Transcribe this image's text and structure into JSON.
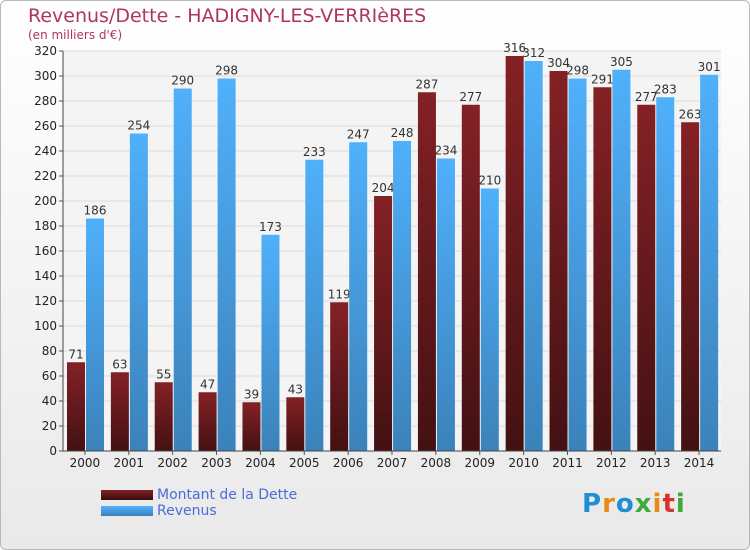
{
  "chart_data": {
    "type": "bar",
    "title": "Revenus/Dette - HADIGNY-LES-VERRIèRES",
    "subtitle": "(en milliers d'€)",
    "categories": [
      "2000",
      "2001",
      "2002",
      "2003",
      "2004",
      "2005",
      "2006",
      "2007",
      "2008",
      "2009",
      "2010",
      "2011",
      "2012",
      "2013",
      "2014"
    ],
    "series": [
      {
        "name": "Montant de la Dette",
        "color": "#7a1f22",
        "values": [
          71,
          63,
          55,
          47,
          39,
          43,
          119,
          204,
          287,
          277,
          316,
          304,
          291,
          277,
          263
        ]
      },
      {
        "name": "Revenus",
        "color": "#4aa3e8",
        "values": [
          186,
          254,
          290,
          298,
          173,
          233,
          247,
          248,
          234,
          210,
          312,
          298,
          305,
          283,
          301
        ]
      }
    ],
    "ylim": [
      0,
      320
    ],
    "yticks": [
      0,
      20,
      40,
      60,
      80,
      100,
      120,
      140,
      160,
      180,
      200,
      220,
      240,
      260,
      280,
      300,
      320
    ],
    "grid": true,
    "legend_position": "bottom-left"
  },
  "logo": {
    "text": "Proxiti"
  }
}
